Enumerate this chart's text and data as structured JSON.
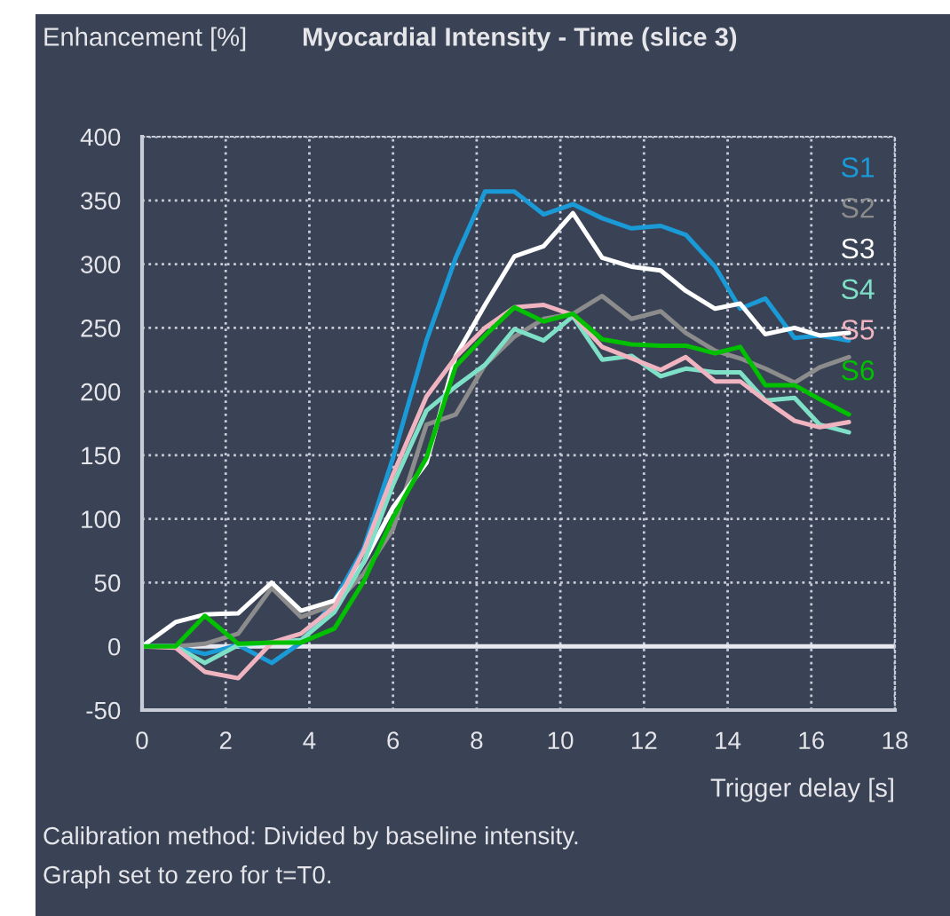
{
  "chart_data": {
    "type": "line",
    "title": "Myocardial Intensity - Time (slice 3)",
    "ylabel": "Enhancement [%]",
    "xlabel": "Trigger delay [s]",
    "annotations": [
      "Calibration method: Divided by baseline intensity.",
      "Graph set to zero for t=T0."
    ],
    "x": [
      0,
      0.8,
      1.5,
      2.3,
      3.1,
      3.8,
      4.6,
      5.3,
      6.0,
      6.8,
      7.5,
      8.2,
      8.9,
      9.6,
      10.3,
      11.0,
      11.7,
      12.4,
      13.0,
      13.7,
      14.3,
      14.9,
      15.6,
      16.2,
      16.9
    ],
    "series": [
      {
        "name": "S1",
        "color": "#1a9ad6",
        "values": [
          0,
          0,
          -6,
          1,
          -13,
          3,
          36,
          77,
          148,
          240,
          305,
          357,
          357,
          339,
          347,
          336,
          328,
          330,
          323,
          298,
          265,
          273,
          242,
          244,
          240
        ]
      },
      {
        "name": "S2",
        "color": "#8c8c8c",
        "values": [
          0,
          0,
          2,
          10,
          46,
          23,
          33,
          57,
          92,
          174,
          182,
          221,
          243,
          257,
          261,
          275,
          257,
          263,
          246,
          232,
          226,
          218,
          207,
          219,
          227
        ]
      },
      {
        "name": "S3",
        "color": "#ffffff",
        "values": [
          0,
          19,
          25,
          26,
          50,
          28,
          36,
          66,
          109,
          144,
          228,
          268,
          306,
          314,
          340,
          305,
          298,
          295,
          279,
          265,
          269,
          245,
          250,
          244,
          246
        ]
      },
      {
        "name": "S4",
        "color": "#7fe0c8",
        "values": [
          0,
          0,
          -13,
          1,
          3,
          5,
          27,
          66,
          127,
          185,
          204,
          221,
          249,
          240,
          259,
          225,
          228,
          212,
          218,
          215,
          215,
          193,
          195,
          174,
          168
        ]
      },
      {
        "name": "S5",
        "color": "#f0b4c0",
        "values": [
          0,
          -1,
          -20,
          -25,
          3,
          10,
          31,
          75,
          135,
          196,
          227,
          250,
          266,
          268,
          260,
          235,
          226,
          217,
          227,
          208,
          208,
          193,
          177,
          172,
          176
        ]
      },
      {
        "name": "S6",
        "color": "#00c000",
        "values": [
          0,
          0,
          24,
          2,
          3,
          3,
          14,
          51,
          101,
          148,
          220,
          244,
          266,
          255,
          261,
          241,
          237,
          236,
          236,
          230,
          235,
          205,
          205,
          194,
          182
        ]
      }
    ],
    "xlim": [
      0,
      18
    ],
    "xticks": [
      0,
      2,
      4,
      6,
      8,
      10,
      12,
      14,
      16,
      18
    ],
    "ylim": [
      -50,
      400
    ],
    "yticks": [
      -50,
      0,
      50,
      100,
      150,
      200,
      250,
      300,
      350,
      400
    ],
    "ref_lines": [
      {
        "axis": "y",
        "value": 0,
        "color": "#e8e8f0",
        "line_style": "solid"
      }
    ],
    "grid": true,
    "legend": "top right",
    "marker": "none",
    "line_style": "solid"
  }
}
